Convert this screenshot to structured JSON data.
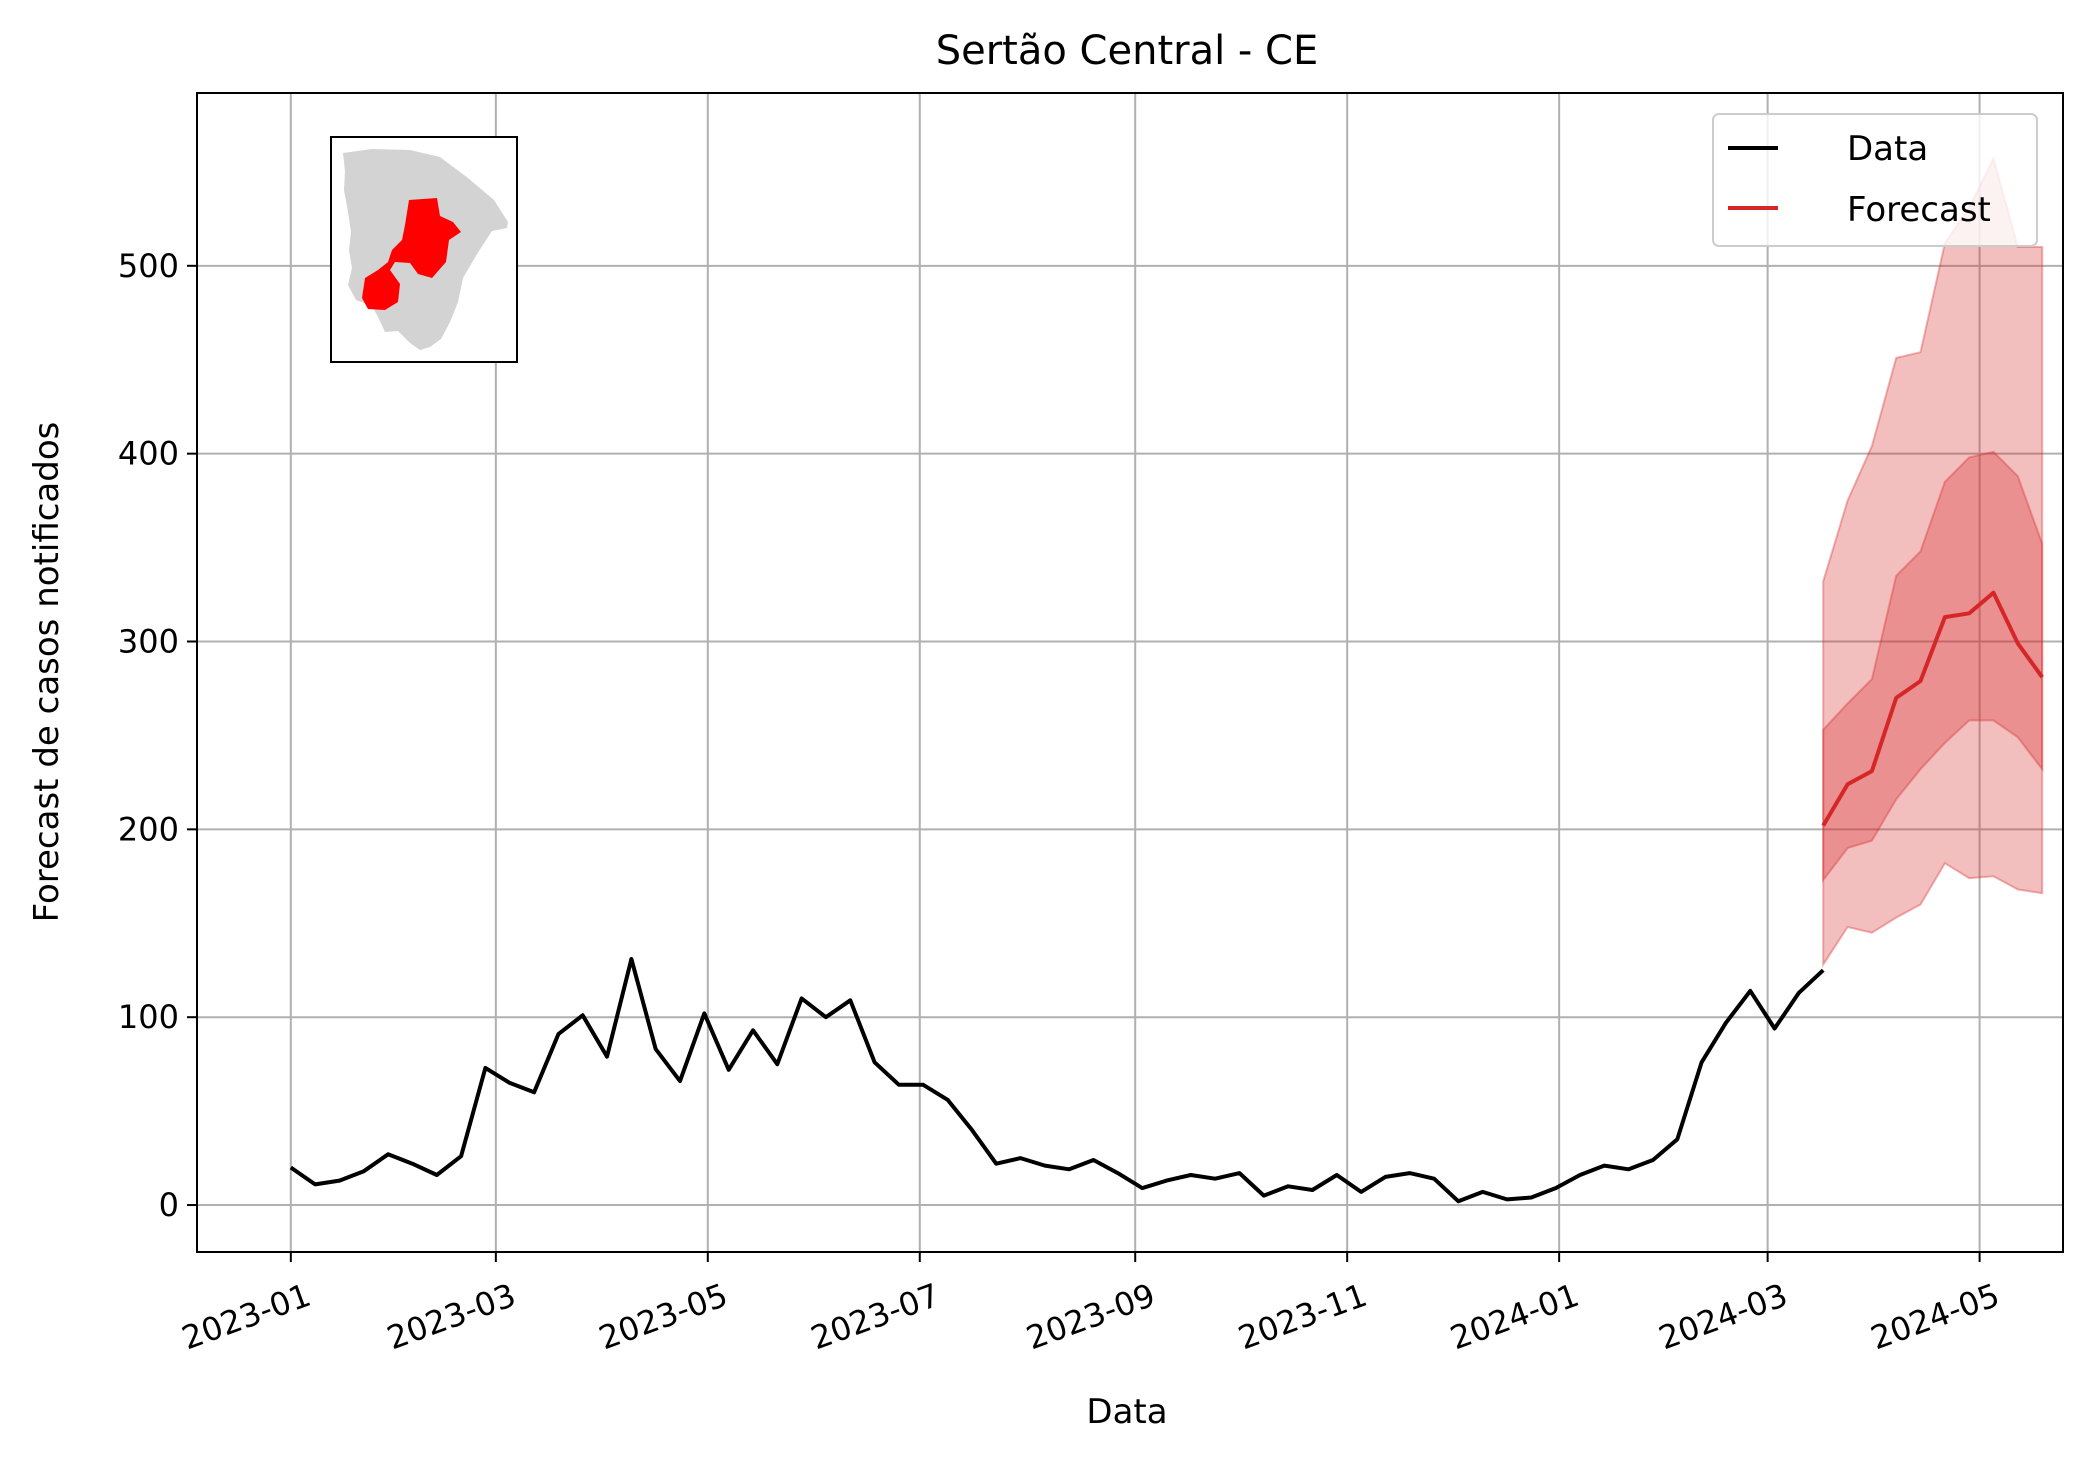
{
  "chart_data": {
    "type": "line",
    "title": "Sertão Central - CE",
    "xlabel": "Data",
    "ylabel": "Forecast de casos notificados",
    "xlim": [
      "2022-12-05",
      "2024-05-25"
    ],
    "ylim": [
      -25,
      592
    ],
    "x_ticks": [
      "2023-01",
      "2023-03",
      "2023-05",
      "2023-07",
      "2023-09",
      "2023-11",
      "2024-01",
      "2024-03",
      "2024-05"
    ],
    "y_ticks": [
      0,
      100,
      200,
      300,
      400,
      500
    ],
    "grid": true,
    "legend_position": "top-right",
    "colors": {
      "data": "#000000",
      "forecast": "#d62728",
      "band": "#d62728",
      "grid": "#b0b0b0",
      "map_region": "#ff0000",
      "map_state": "#d3d3d3"
    },
    "inset_map": {
      "description_icon": "ceara-state-map-icon"
    },
    "series": [
      {
        "name": "Data",
        "x": [
          "2023-01-01",
          "2023-01-08",
          "2023-01-15",
          "2023-01-22",
          "2023-01-29",
          "2023-02-05",
          "2023-02-12",
          "2023-02-19",
          "2023-02-26",
          "2023-03-05",
          "2023-03-12",
          "2023-03-19",
          "2023-03-26",
          "2023-04-02",
          "2023-04-09",
          "2023-04-16",
          "2023-04-23",
          "2023-04-30",
          "2023-05-07",
          "2023-05-14",
          "2023-05-21",
          "2023-05-28",
          "2023-06-04",
          "2023-06-11",
          "2023-06-18",
          "2023-06-25",
          "2023-07-02",
          "2023-07-09",
          "2023-07-16",
          "2023-07-23",
          "2023-07-30",
          "2023-08-06",
          "2023-08-13",
          "2023-08-20",
          "2023-08-27",
          "2023-09-03",
          "2023-09-10",
          "2023-09-17",
          "2023-09-24",
          "2023-10-01",
          "2023-10-08",
          "2023-10-15",
          "2023-10-22",
          "2023-10-29",
          "2023-11-05",
          "2023-11-12",
          "2023-11-19",
          "2023-11-26",
          "2023-12-03",
          "2023-12-10",
          "2023-12-17",
          "2023-12-24",
          "2023-12-31",
          "2024-01-07",
          "2024-01-14",
          "2024-01-21",
          "2024-01-28",
          "2024-02-04",
          "2024-02-11",
          "2024-02-18",
          "2024-02-25",
          "2024-03-03",
          "2024-03-10",
          "2024-03-17"
        ],
        "values": [
          20,
          11,
          13,
          18,
          27,
          22,
          16,
          26,
          73,
          65,
          60,
          91,
          101,
          79,
          131,
          83,
          66,
          102,
          72,
          93,
          75,
          110,
          100,
          109,
          76,
          64,
          64,
          56,
          40,
          22,
          25,
          21,
          19,
          24,
          17,
          9,
          13,
          16,
          14,
          17,
          5,
          10,
          8,
          16,
          7,
          15,
          17,
          14,
          2,
          7,
          3,
          4,
          9,
          16,
          21,
          19,
          24,
          35,
          76,
          97,
          114,
          94,
          113,
          125
        ]
      },
      {
        "name": "Forecast",
        "x": [
          "2024-03-17",
          "2024-03-24",
          "2024-03-31",
          "2024-04-07",
          "2024-04-14",
          "2024-04-21",
          "2024-04-28",
          "2024-05-05",
          "2024-05-12",
          "2024-05-19"
        ],
        "values": [
          202,
          224,
          231,
          270,
          279,
          313,
          315,
          326,
          299,
          281
        ],
        "inner_lower": [
          173,
          190,
          194,
          216,
          232,
          246,
          258,
          258,
          249,
          232
        ],
        "inner_upper": [
          253,
          267,
          280,
          335,
          348,
          385,
          398,
          401,
          388,
          352
        ],
        "outer_lower": [
          128,
          148,
          145,
          153,
          160,
          182,
          174,
          175,
          168,
          166
        ],
        "outer_upper": [
          332,
          375,
          404,
          451,
          454,
          512,
          531,
          557,
          510,
          510
        ]
      }
    ]
  }
}
